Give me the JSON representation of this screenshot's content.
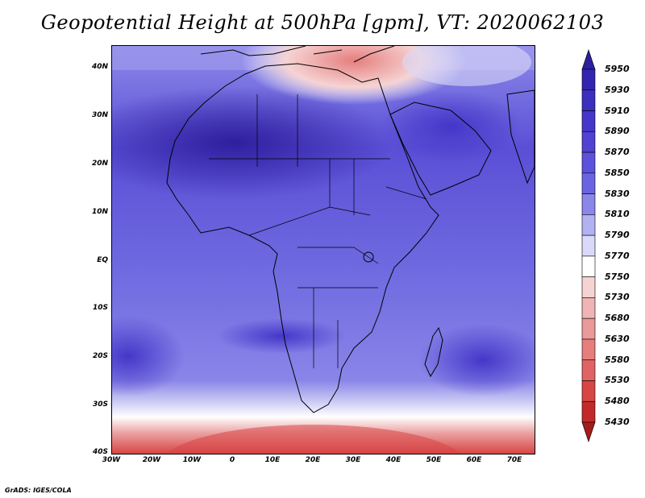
{
  "title": "Geopotential Height at 500hPa [gpm], VT: 2020062103",
  "credit": "GrADS: IGES/COLA",
  "map": {
    "lat_labels": [
      "40N",
      "30N",
      "20N",
      "10N",
      "EQ",
      "10S",
      "20S",
      "30S",
      "40S"
    ],
    "lon_labels": [
      "30W",
      "20W",
      "10W",
      "0",
      "10E",
      "20E",
      "30E",
      "40E",
      "50E",
      "60E",
      "70E"
    ]
  },
  "colorbar": {
    "levels": [
      "5950",
      "5930",
      "5910",
      "5890",
      "5870",
      "5850",
      "5830",
      "5810",
      "5790",
      "5770",
      "5750",
      "5730",
      "5680",
      "5630",
      "5580",
      "5530",
      "5480",
      "5430"
    ],
    "colors": [
      "#2e1f9e",
      "#3325b0",
      "#3a2fbf",
      "#4437c9",
      "#5042d2",
      "#5c52db",
      "#6b64e2",
      "#8a86ea",
      "#b2b1f2",
      "#dad9f8",
      "#ffffff",
      "#f6d3d3",
      "#f0b4b4",
      "#ea9a9a",
      "#e67e7e",
      "#e06464",
      "#d84545",
      "#c22a2a",
      "#a51b1b"
    ]
  }
}
